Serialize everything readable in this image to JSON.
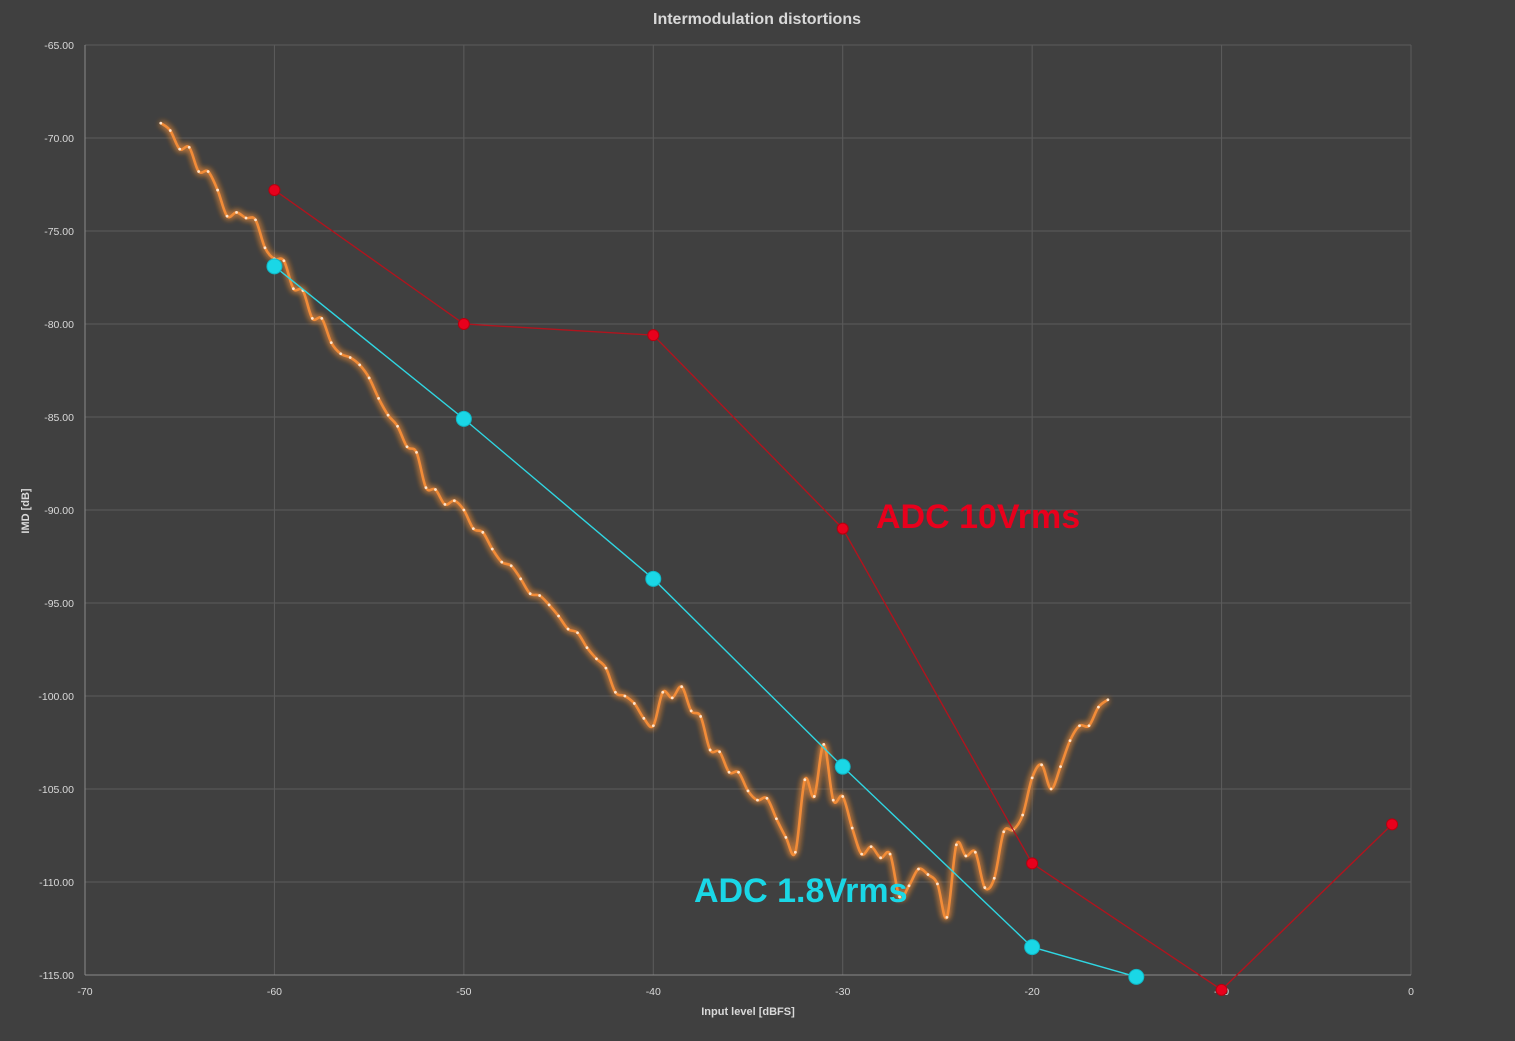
{
  "chart_data": {
    "type": "line",
    "title": "Intermodulation distortions",
    "xlabel": "Input level [dBFS]",
    "ylabel": "IMD [dB]",
    "xlim": [
      -70,
      0
    ],
    "ylim": [
      -115,
      -65
    ],
    "x_ticks": [
      "-70",
      "-60",
      "-50",
      "-40",
      "-30",
      "-20",
      "-10",
      "0"
    ],
    "y_ticks": [
      "-65.00",
      "-70.00",
      "-75.00",
      "-80.00",
      "-85.00",
      "-90.00",
      "-95.00",
      "-100.00",
      "-105.00",
      "-110.00",
      "-115.00"
    ],
    "grid": true,
    "legend": "none",
    "annotations": [
      {
        "text": "ADC 10Vrms",
        "color": "#e8001c"
      },
      {
        "text": "ADC 1.8Vrms",
        "color": "#1ad7e6"
      }
    ],
    "series": [
      {
        "color": "#f28c38",
        "style": "smooth-glow",
        "points": [
          [
            -66,
            -69.2
          ],
          [
            -65.5,
            -69.6
          ],
          [
            -65,
            -70.6
          ],
          [
            -64.5,
            -70.5
          ],
          [
            -64,
            -71.8
          ],
          [
            -63.5,
            -71.8
          ],
          [
            -63,
            -72.8
          ],
          [
            -62.5,
            -74.2
          ],
          [
            -62,
            -74.0
          ],
          [
            -61.5,
            -74.3
          ],
          [
            -61,
            -74.4
          ],
          [
            -60.5,
            -75.9
          ],
          [
            -60,
            -76.5
          ],
          [
            -59.5,
            -76.6
          ],
          [
            -59,
            -78.1
          ],
          [
            -58.5,
            -78.2
          ],
          [
            -58,
            -79.7
          ],
          [
            -57.5,
            -79.7
          ],
          [
            -57,
            -81.0
          ],
          [
            -56.5,
            -81.6
          ],
          [
            -56,
            -81.8
          ],
          [
            -55.5,
            -82.2
          ],
          [
            -55,
            -82.9
          ],
          [
            -54.5,
            -84.0
          ],
          [
            -54,
            -84.9
          ],
          [
            -53.5,
            -85.5
          ],
          [
            -53,
            -86.6
          ],
          [
            -52.5,
            -86.9
          ],
          [
            -52,
            -88.8
          ],
          [
            -51.5,
            -88.9
          ],
          [
            -51,
            -89.7
          ],
          [
            -50.5,
            -89.5
          ],
          [
            -50,
            -90.0
          ],
          [
            -49.5,
            -91.0
          ],
          [
            -49,
            -91.2
          ],
          [
            -48.5,
            -92.1
          ],
          [
            -48,
            -92.8
          ],
          [
            -47.5,
            -93.0
          ],
          [
            -47,
            -93.7
          ],
          [
            -46.5,
            -94.5
          ],
          [
            -46,
            -94.6
          ],
          [
            -45.5,
            -95.1
          ],
          [
            -45,
            -95.7
          ],
          [
            -44.5,
            -96.4
          ],
          [
            -44,
            -96.6
          ],
          [
            -43.5,
            -97.4
          ],
          [
            -43,
            -98.0
          ],
          [
            -42.5,
            -98.5
          ],
          [
            -42,
            -99.8
          ],
          [
            -41.5,
            -100.0
          ],
          [
            -41,
            -100.4
          ],
          [
            -40.5,
            -101.2
          ],
          [
            -40,
            -101.6
          ],
          [
            -39.5,
            -99.8
          ],
          [
            -39,
            -100.1
          ],
          [
            -38.5,
            -99.5
          ],
          [
            -38,
            -100.8
          ],
          [
            -37.5,
            -101.1
          ],
          [
            -37,
            -102.9
          ],
          [
            -36.5,
            -103.0
          ],
          [
            -36,
            -104.1
          ],
          [
            -35.5,
            -104.1
          ],
          [
            -35,
            -105.1
          ],
          [
            -34.5,
            -105.6
          ],
          [
            -34,
            -105.5
          ],
          [
            -33.5,
            -106.6
          ],
          [
            -33,
            -107.6
          ],
          [
            -32.5,
            -108.4
          ],
          [
            -32,
            -104.5
          ],
          [
            -31.5,
            -105.4
          ],
          [
            -31,
            -102.6
          ],
          [
            -30.5,
            -105.6
          ],
          [
            -30,
            -105.4
          ],
          [
            -29.5,
            -107.1
          ],
          [
            -29,
            -108.5
          ],
          [
            -28.5,
            -108.1
          ],
          [
            -28,
            -108.7
          ],
          [
            -27.5,
            -108.5
          ],
          [
            -27,
            -110.8
          ],
          [
            -26.5,
            -110.2
          ],
          [
            -26,
            -109.3
          ],
          [
            -25.5,
            -109.6
          ],
          [
            -25,
            -110.1
          ],
          [
            -24.5,
            -111.9
          ],
          [
            -24,
            -108.0
          ],
          [
            -23.5,
            -108.6
          ],
          [
            -23,
            -108.4
          ],
          [
            -22.5,
            -110.3
          ],
          [
            -22,
            -109.8
          ],
          [
            -21.5,
            -107.3
          ],
          [
            -21,
            -107.2
          ],
          [
            -20.5,
            -106.4
          ],
          [
            -20,
            -104.4
          ],
          [
            -19.5,
            -103.7
          ],
          [
            -19,
            -105.0
          ],
          [
            -18.5,
            -103.8
          ],
          [
            -18,
            -102.4
          ],
          [
            -17.5,
            -101.6
          ],
          [
            -17,
            -101.6
          ],
          [
            -16.5,
            -100.6
          ],
          [
            -16,
            -100.2
          ]
        ]
      },
      {
        "name": "ADC 10Vrms",
        "color": "#e8001c",
        "points": [
          [
            -60,
            -72.8
          ],
          [
            -50,
            -80.0
          ],
          [
            -40,
            -80.6
          ],
          [
            -30,
            -91.0
          ],
          [
            -20,
            -109.0
          ],
          [
            -10,
            -115.8
          ],
          [
            -1,
            -106.9
          ]
        ]
      },
      {
        "name": "ADC 1.8Vrms",
        "color": "#1ad7e6",
        "points": [
          [
            -60,
            -76.9
          ],
          [
            -50,
            -85.1
          ],
          [
            -40,
            -93.7
          ],
          [
            -30,
            -103.8
          ],
          [
            -20,
            -113.5
          ],
          [
            -14.5,
            -115.1
          ]
        ]
      }
    ]
  }
}
